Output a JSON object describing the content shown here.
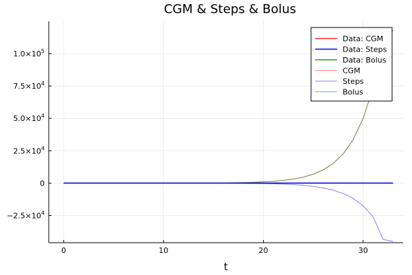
{
  "chart_data": {
    "type": "line",
    "title": "CGM & Steps & Bolus",
    "xlabel": "t",
    "ylabel": "",
    "xlim": [
      -1.5,
      34
    ],
    "ylim": [
      -46000,
      125000
    ],
    "x_ticks": [
      0,
      10,
      20,
      30
    ],
    "y_ticks": [
      {
        "value": 100000,
        "mantissa": "1.0",
        "exp": "5"
      },
      {
        "value": 75000,
        "mantissa": "7.5",
        "exp": "4"
      },
      {
        "value": 50000,
        "mantissa": "5.0",
        "exp": "4"
      },
      {
        "value": 25000,
        "mantissa": "2.5",
        "exp": "4"
      },
      {
        "value": 0,
        "mantissa": "0",
        "exp": ""
      },
      {
        "value": -25000,
        "mantissa": "−2.5",
        "exp": "4"
      }
    ],
    "tick_times_symbol": "×10",
    "grid": true,
    "legend_position": "top-right",
    "x": [
      0,
      1,
      2,
      3,
      4,
      5,
      6,
      7,
      8,
      9,
      10,
      11,
      12,
      13,
      14,
      15,
      16,
      17,
      18,
      19,
      20,
      21,
      22,
      23,
      24,
      25,
      26,
      27,
      28,
      29,
      30,
      31,
      32,
      33
    ],
    "series": [
      {
        "name": "Data: CGM",
        "color": "#ff0000",
        "width": 1.2,
        "opacity": 1.0,
        "values": [
          0,
          0,
          0,
          0,
          0,
          0,
          0,
          0,
          0,
          0,
          0,
          0,
          0,
          0,
          0,
          0,
          0,
          0,
          0,
          0,
          0,
          0,
          0,
          0,
          0,
          0,
          0,
          0,
          0,
          0,
          0,
          0,
          0,
          0
        ]
      },
      {
        "name": "Data: Steps",
        "color": "#0000ff",
        "width": 1.6,
        "opacity": 1.0,
        "values": [
          0,
          0,
          0,
          0,
          0,
          0,
          0,
          0,
          0,
          0,
          0,
          0,
          0,
          0,
          0,
          0,
          0,
          0,
          0,
          0,
          0,
          0,
          0,
          0,
          0,
          0,
          0,
          0,
          0,
          0,
          0,
          0,
          0,
          0
        ]
      },
      {
        "name": "Data: Bolus",
        "color": "#008000",
        "width": 1.2,
        "opacity": 1.0,
        "values": [
          0,
          0,
          0,
          0,
          0,
          0,
          0,
          0,
          0,
          0,
          0,
          0,
          0,
          0,
          0,
          0,
          0,
          0,
          0,
          0,
          0,
          0,
          0,
          0,
          0,
          0,
          0,
          0,
          0,
          0,
          0,
          0,
          0,
          0
        ]
      },
      {
        "name": "CGM",
        "color": "#ff0000",
        "width": 1.0,
        "opacity": 0.5,
        "values": [
          0,
          0,
          0,
          1,
          1,
          2,
          3,
          5,
          8,
          12,
          18,
          27,
          40,
          60,
          90,
          130,
          195,
          290,
          430,
          640,
          950,
          1400,
          2100,
          3100,
          4600,
          6900,
          10200,
          15200,
          22600,
          33600,
          50000,
          74000,
          110000,
          118000
        ]
      },
      {
        "name": "Steps",
        "color": "#0000ff",
        "width": 1.0,
        "opacity": 0.5,
        "values": [
          0,
          0,
          0,
          0,
          0,
          -1,
          -1,
          -2,
          -3,
          -5,
          -7,
          -10,
          -15,
          -22,
          -33,
          -49,
          -72,
          -107,
          -160,
          -235,
          -350,
          -520,
          -770,
          -1140,
          -1690,
          -2500,
          -3700,
          -5400,
          -8000,
          -11800,
          -17500,
          -26000,
          -43500,
          -45000
        ]
      },
      {
        "name": "Bolus",
        "color": "#008000",
        "width": 1.0,
        "opacity": 0.5,
        "values": [
          0,
          0,
          0,
          1,
          1,
          2,
          3,
          5,
          8,
          12,
          18,
          27,
          40,
          60,
          90,
          130,
          195,
          290,
          430,
          640,
          950,
          1400,
          2100,
          3100,
          4600,
          6900,
          10200,
          15200,
          22600,
          33600,
          50000,
          74000,
          110000,
          118000
        ]
      }
    ]
  }
}
